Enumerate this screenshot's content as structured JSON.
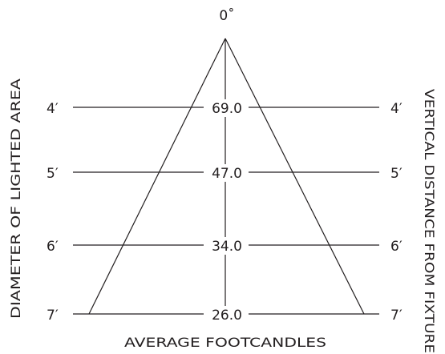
{
  "apex_label": "0˚",
  "rows": [
    {
      "value": "69.0",
      "left_label": "4′",
      "right_label": "4′"
    },
    {
      "value": "47.0",
      "left_label": "5′",
      "right_label": "5′"
    },
    {
      "value": "34.0",
      "left_label": "6′",
      "right_label": "6′"
    },
    {
      "value": "26.0",
      "left_label": "7′",
      "right_label": "7′"
    }
  ],
  "left_axis_title": "DIAMETER OF LIGHTED AREA",
  "right_axis_title": "VERTICAL DISTANCE FROM FIXTURE",
  "bottom_title": "AVERAGE FOOTCANDLES"
}
